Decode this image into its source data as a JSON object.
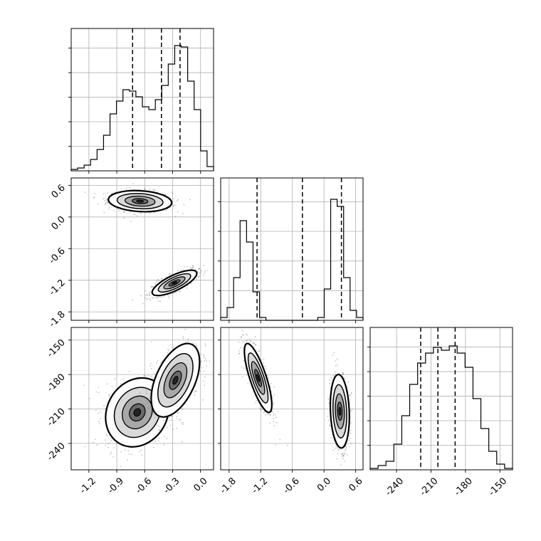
{
  "chart_data": {
    "type": "corner",
    "grid": true,
    "ticks": {
      "x0": [
        "-1.2",
        "-0.9",
        "-0.6",
        "-0.3",
        "0.0"
      ],
      "x1": [
        "-1.8",
        "-1.2",
        "-0.6",
        "0.0",
        "0.6"
      ],
      "x2": [
        "-240",
        "-210",
        "-180",
        "-150"
      ],
      "y1": [
        "0.6",
        "0.0",
        "-0.6",
        "-1.2",
        "-1.8"
      ],
      "y2": [
        "-150",
        "-180",
        "-210",
        "-240"
      ]
    },
    "ranges": {
      "x0": [
        -1.39,
        0.14
      ],
      "x1": [
        -1.96,
        0.74
      ],
      "x2": [
        -263,
        -139
      ]
    },
    "quantiles": {
      "x0": [
        -0.73,
        -0.42,
        -0.22
      ],
      "x1": [
        -1.27,
        -0.41,
        0.33
      ],
      "x2": [
        -219,
        -204,
        -189
      ]
    },
    "histograms": {
      "x0": [
        0.01,
        0.02,
        0.04,
        0.08,
        0.15,
        0.25,
        0.4,
        0.49,
        0.57,
        0.56,
        0.52,
        0.45,
        0.43,
        0.5,
        0.6,
        0.75,
        0.88,
        0.87,
        0.63,
        0.43,
        0.14,
        0.03
      ],
      "x1": [
        0.02,
        0.09,
        0.3,
        0.7,
        0.55,
        0.2,
        0.02,
        0,
        0,
        0,
        0,
        0,
        0,
        0,
        0,
        0.02,
        0.22,
        0.85,
        0.8,
        0.3,
        0.07,
        0.02
      ],
      "x2": [
        0.01,
        0.03,
        0.06,
        0.18,
        0.38,
        0.6,
        0.75,
        0.82,
        0.86,
        0.84,
        0.87,
        0.82,
        0.72,
        0.5,
        0.29,
        0.13,
        0.04,
        0.01
      ]
    },
    "scatter_clusters": {
      "x0_vs_x1": [
        {
          "center": [
            -0.65,
            0.3
          ],
          "sd": [
            0.17,
            0.1
          ],
          "rho": -0.15
        },
        {
          "center": [
            -0.28,
            -1.25
          ],
          "sd": [
            0.12,
            0.12
          ],
          "rho": 0.75
        }
      ],
      "x0_vs_x2": [
        {
          "center": [
            -0.68,
            -213
          ],
          "sd": [
            0.17,
            15
          ],
          "rho": 0.15
        },
        {
          "center": [
            -0.27,
            -185
          ],
          "sd": [
            0.13,
            16
          ],
          "rho": 0.5
        }
      ],
      "x1_vs_x2": [
        {
          "center": [
            -1.25,
            -183
          ],
          "sd": [
            0.13,
            15
          ],
          "rho": -0.78
        },
        {
          "center": [
            0.3,
            -212
          ],
          "sd": [
            0.09,
            16
          ],
          "rho": -0.15
        }
      ]
    }
  }
}
